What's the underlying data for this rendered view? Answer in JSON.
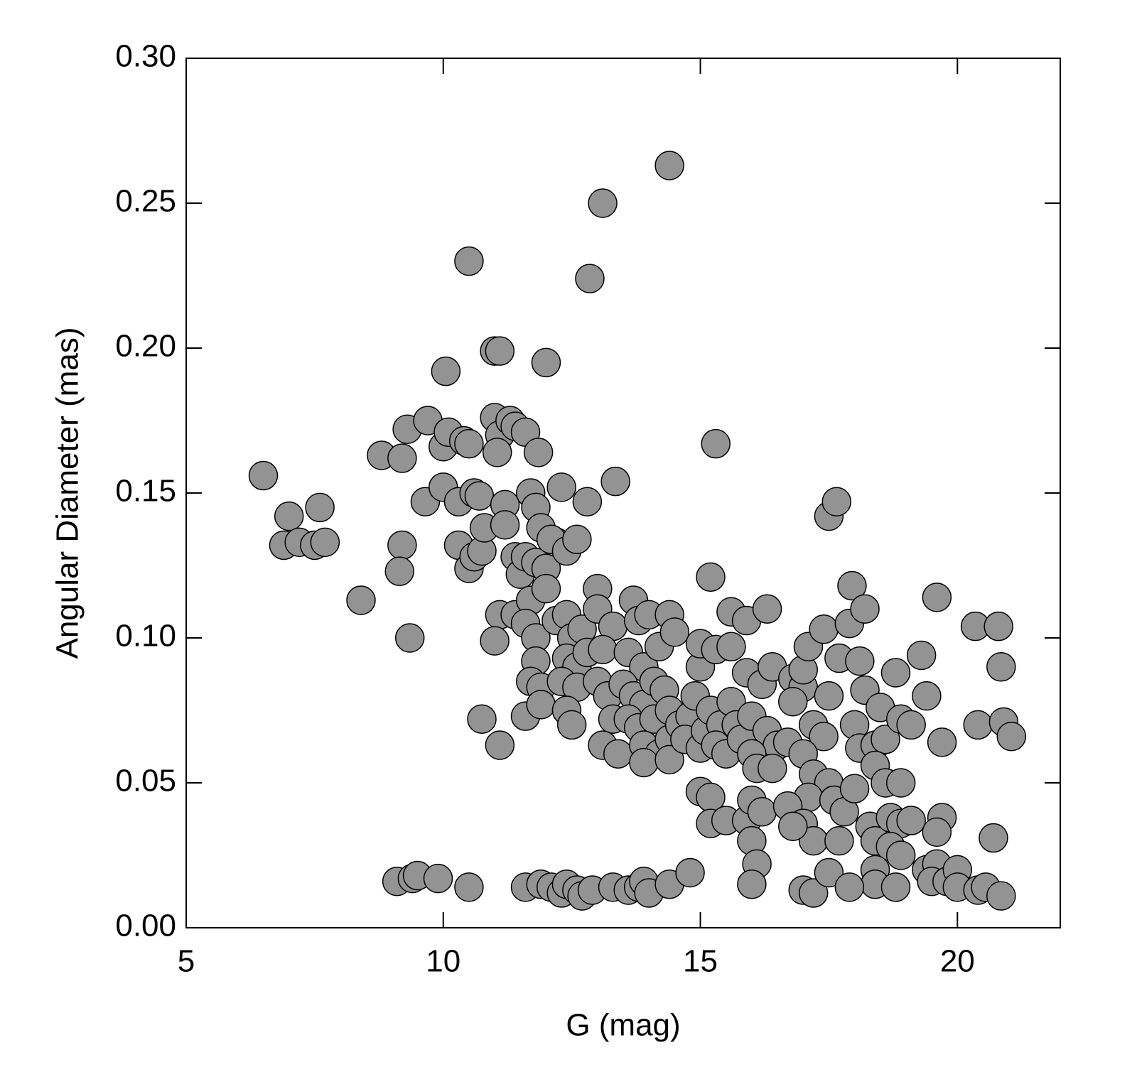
{
  "chart_data": {
    "type": "scatter",
    "xlabel": "G (mag)",
    "ylabel": "Angular Diameter (mas)",
    "xlim": [
      5,
      22
    ],
    "xticks": [
      5,
      10,
      15,
      20
    ],
    "ylim": [
      0,
      0.3
    ],
    "yticks": [
      {
        "value": 0,
        "label": "0.00"
      },
      0.05,
      {
        "value": 0.1,
        "label": "0.10"
      },
      0.15,
      {
        "value": 0.2,
        "label": "0.20"
      },
      0.25,
      {
        "value": 0.3,
        "label": "0.30"
      }
    ],
    "color": "#939393",
    "x": [
      6.5,
      7.0,
      6.9,
      7.2,
      7.5,
      7.6,
      7.7,
      8.4,
      8.8,
      9.2,
      9.3,
      9.2,
      9.15,
      9.35,
      9.7,
      9.65,
      10.0,
      10.1,
      10.0,
      10.05,
      10.3,
      10.4,
      10.5,
      10.6,
      10.7,
      10.3,
      10.5,
      10.6,
      10.75,
      10.8,
      10.5,
      11.0,
      11.1,
      11.0,
      11.1,
      11.05,
      11.3,
      11.4,
      11.6,
      11.85,
      11.2,
      11.2,
      11.7,
      11.8,
      11.9,
      11.4,
      11.5,
      11.6,
      11.8,
      12.0,
      12.2,
      12.0,
      12.3,
      12.1,
      12.4,
      12.6,
      12.8,
      12.85,
      13.1,
      13.35,
      14.4,
      15.3,
      15.2,
      11.1,
      11.0,
      11.4,
      11.7,
      11.6,
      11.8,
      11.8,
      11.7,
      11.9,
      11.6,
      11.9,
      10.75,
      11.1,
      12.0,
      12.2,
      12.4,
      12.5,
      12.7,
      12.4,
      12.6,
      12.8,
      12.3,
      12.6,
      12.4,
      12.5,
      13.0,
      13.0,
      13.3,
      13.1,
      13.0,
      13.2,
      13.3,
      13.1,
      13.4,
      13.7,
      13.8,
      14.0,
      14.4,
      13.6,
      13.9,
      14.2,
      14.5,
      13.5,
      13.7,
      13.9,
      14.1,
      14.3,
      13.6,
      13.8,
      14.1,
      14.4,
      13.9,
      14.2,
      14.4,
      13.9,
      14.4,
      14.6,
      14.8,
      14.9,
      14.7,
      15.0,
      15.1,
      15.0,
      15.0,
      15.3,
      15.6,
      15.2,
      15.4,
      15.3,
      15.6,
      15.7,
      15.5,
      15.8,
      15.6,
      15.9,
      16.3,
      15.9,
      16.2,
      16.4,
      16.0,
      16.3,
      16.5,
      16.7,
      16.0,
      16.1,
      16.4,
      16.8,
      17.0,
      16.8,
      17.0,
      17.1,
      17.4,
      17.5,
      17.2,
      17.4,
      17.0,
      17.2,
      17.5,
      17.1,
      15.0,
      15.2,
      15.2,
      15.5,
      15.9,
      16.0,
      16.2,
      16.0,
      16.1,
      16.0,
      16.7,
      17.0,
      17.2,
      16.8,
      17.7,
      17.6,
      17.8,
      18.0,
      17.5,
      17.65,
      17.95,
      17.9,
      18.2,
      17.7,
      18.1,
      18.2,
      18.0,
      18.1,
      18.4,
      18.5,
      18.6,
      18.4,
      18.6,
      18.8,
      18.9,
      19.1,
      18.9,
      19.3,
      19.4,
      19.6,
      19.7,
      18.3,
      18.4,
      18.7,
      18.9,
      19.1,
      18.7,
      18.4,
      18.4,
      18.8,
      18.9,
      19.4,
      19.6,
      19.5,
      19.8,
      19.7,
      19.6,
      20.0,
      20.0,
      20.35,
      20.4,
      20.8,
      20.85,
      20.9,
      21.05,
      20.7,
      20.4,
      20.55,
      20.85,
      17.0,
      17.2,
      17.5,
      17.9,
      9.1,
      9.4,
      9.5,
      9.9,
      10.5,
      11.6,
      11.9,
      12.1,
      12.3,
      12.4,
      12.6,
      12.7,
      12.9,
      13.3,
      13.6,
      13.8,
      13.9,
      14.0,
      14.4,
      14.8
    ],
    "values": [
      0.156,
      0.142,
      0.132,
      0.133,
      0.132,
      0.145,
      0.133,
      0.113,
      0.163,
      0.162,
      0.172,
      0.132,
      0.123,
      0.1,
      0.175,
      0.147,
      0.166,
      0.171,
      0.152,
      0.192,
      0.147,
      0.168,
      0.167,
      0.15,
      0.149,
      0.132,
      0.124,
      0.128,
      0.13,
      0.138,
      0.23,
      0.199,
      0.199,
      0.176,
      0.17,
      0.164,
      0.175,
      0.173,
      0.171,
      0.164,
      0.146,
      0.139,
      0.15,
      0.145,
      0.138,
      0.128,
      0.122,
      0.128,
      0.126,
      0.124,
      0.133,
      0.195,
      0.152,
      0.134,
      0.13,
      0.134,
      0.147,
      0.224,
      0.25,
      0.154,
      0.263,
      0.167,
      0.121,
      0.108,
      0.099,
      0.108,
      0.113,
      0.105,
      0.1,
      0.092,
      0.085,
      0.083,
      0.073,
      0.077,
      0.072,
      0.063,
      0.117,
      0.106,
      0.108,
      0.1,
      0.103,
      0.093,
      0.09,
      0.095,
      0.085,
      0.083,
      0.075,
      0.07,
      0.117,
      0.11,
      0.104,
      0.096,
      0.085,
      0.08,
      0.072,
      0.063,
      0.06,
      0.113,
      0.106,
      0.108,
      0.108,
      0.095,
      0.09,
      0.097,
      0.102,
      0.084,
      0.08,
      0.077,
      0.085,
      0.082,
      0.072,
      0.069,
      0.072,
      0.075,
      0.063,
      0.06,
      0.065,
      0.057,
      0.058,
      0.07,
      0.073,
      0.08,
      0.065,
      0.062,
      0.068,
      0.09,
      0.098,
      0.096,
      0.097,
      0.075,
      0.07,
      0.063,
      0.078,
      0.07,
      0.06,
      0.065,
      0.109,
      0.106,
      0.11,
      0.088,
      0.084,
      0.09,
      0.073,
      0.068,
      0.063,
      0.064,
      0.06,
      0.055,
      0.055,
      0.086,
      0.083,
      0.078,
      0.089,
      0.097,
      0.103,
      0.08,
      0.07,
      0.066,
      0.06,
      0.053,
      0.05,
      0.045,
      0.047,
      0.045,
      0.036,
      0.037,
      0.037,
      0.044,
      0.04,
      0.03,
      0.022,
      0.015,
      0.042,
      0.036,
      0.03,
      0.035,
      0.03,
      0.044,
      0.04,
      0.048,
      0.142,
      0.147,
      0.118,
      0.105,
      0.11,
      0.093,
      0.092,
      0.082,
      0.07,
      0.062,
      0.063,
      0.076,
      0.065,
      0.056,
      0.05,
      0.088,
      0.072,
      0.07,
      0.05,
      0.094,
      0.08,
      0.114,
      0.064,
      0.035,
      0.03,
      0.038,
      0.036,
      0.037,
      0.028,
      0.02,
      0.015,
      0.014,
      0.025,
      0.02,
      0.022,
      0.016,
      0.016,
      0.038,
      0.033,
      0.02,
      0.014,
      0.104,
      0.07,
      0.104,
      0.09,
      0.071,
      0.066,
      0.031,
      0.013,
      0.014,
      0.011,
      0.013,
      0.012,
      0.019,
      0.014,
      0.016,
      0.017,
      0.018,
      0.017,
      0.014,
      0.014,
      0.015,
      0.014,
      0.012,
      0.015,
      0.013,
      0.011,
      0.013,
      0.014,
      0.013,
      0.014,
      0.016,
      0.012,
      0.015,
      0.019
    ]
  }
}
